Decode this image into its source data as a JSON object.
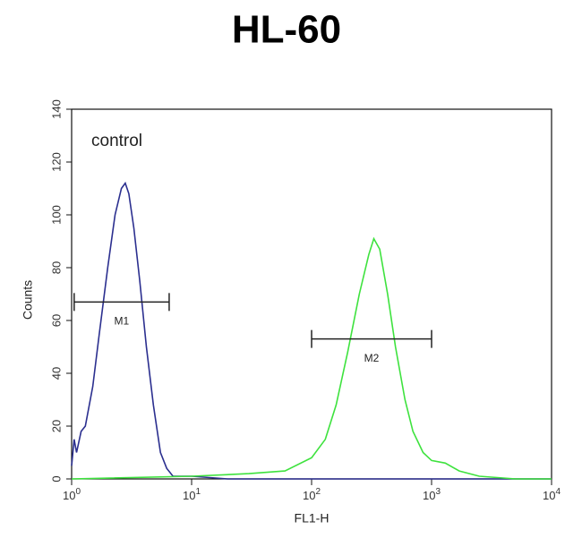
{
  "chart_data": {
    "type": "line",
    "title": "HL-60",
    "xlabel": "FL1-H",
    "ylabel": "Counts",
    "xscale": "log",
    "xlim": [
      1,
      10000
    ],
    "ylim": [
      0,
      140
    ],
    "xticks": [
      {
        "value": 1,
        "label": "10",
        "exponent": "0"
      },
      {
        "value": 10,
        "label": "10",
        "exponent": "1"
      },
      {
        "value": 100,
        "label": "10",
        "exponent": "2"
      },
      {
        "value": 1000,
        "label": "10",
        "exponent": "3"
      },
      {
        "value": 10000,
        "label": "10",
        "exponent": "4"
      }
    ],
    "yticks": [
      0,
      20,
      40,
      60,
      80,
      100,
      120,
      140
    ],
    "series": [
      {
        "name": "control",
        "color": "#2b2f8f",
        "x": [
          1.0,
          1.05,
          1.1,
          1.2,
          1.3,
          1.5,
          1.7,
          2.0,
          2.3,
          2.6,
          2.8,
          3.0,
          3.3,
          3.7,
          4.2,
          4.8,
          5.5,
          6.2,
          7,
          10,
          20,
          100,
          10000
        ],
        "values": [
          5,
          15,
          10,
          18,
          20,
          35,
          55,
          80,
          100,
          110,
          112,
          108,
          95,
          75,
          50,
          28,
          10,
          4,
          1,
          1,
          0,
          0,
          0
        ]
      },
      {
        "color": "#3ee23e",
        "x": [
          1,
          10,
          30,
          60,
          100,
          130,
          160,
          200,
          250,
          300,
          330,
          370,
          430,
          500,
          600,
          700,
          850,
          1000,
          1300,
          1700,
          2500,
          5000,
          10000
        ],
        "values": [
          0,
          1,
          2,
          3,
          8,
          15,
          28,
          48,
          70,
          85,
          91,
          87,
          70,
          50,
          30,
          18,
          10,
          7,
          6,
          3,
          1,
          0,
          0
        ]
      }
    ],
    "gates": [
      {
        "label": "M1",
        "x": [
          1.05,
          6.5
        ],
        "y": 67
      },
      {
        "label": "M2",
        "x": [
          100,
          1000
        ],
        "y": 53
      }
    ]
  }
}
